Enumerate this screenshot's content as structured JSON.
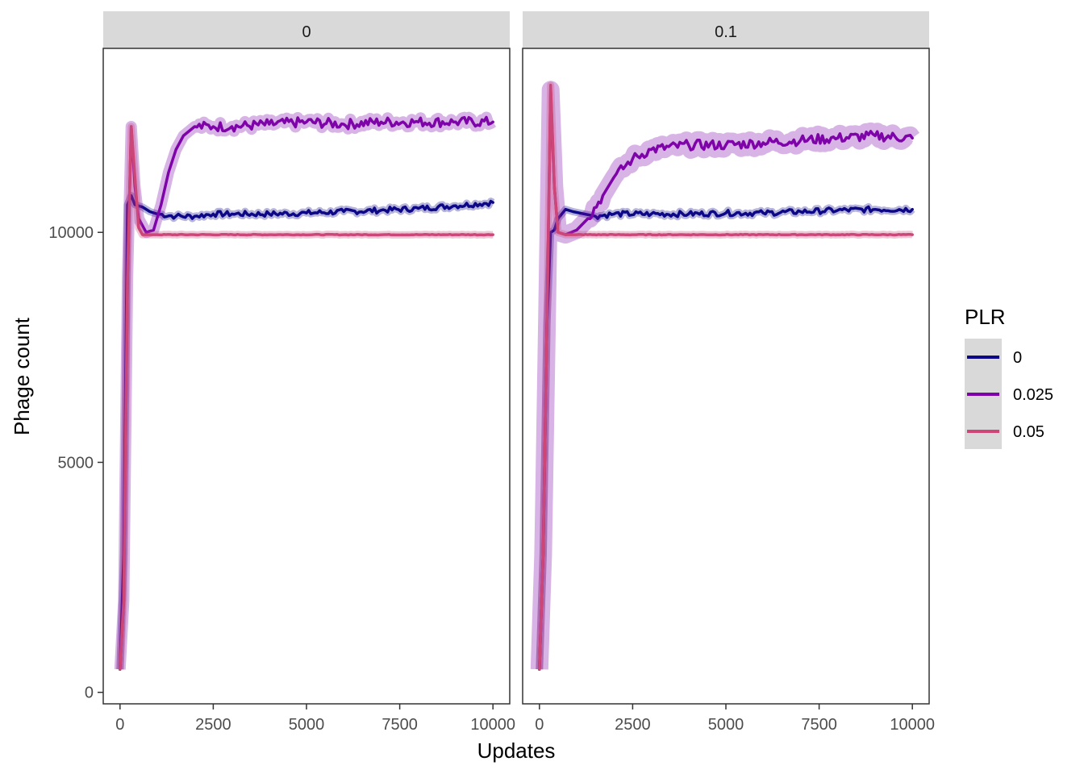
{
  "chart_data": {
    "type": "line",
    "xlabel": "Updates",
    "ylabel": "Phage count",
    "xlim": [
      -450,
      10450
    ],
    "ylim": [
      -250,
      14000
    ],
    "x_ticks": [
      0,
      2500,
      5000,
      7500,
      10000
    ],
    "y_ticks": [
      0,
      5000,
      10000
    ],
    "grid": false,
    "legend": {
      "title": "PLR",
      "position": "right",
      "entries": [
        {
          "label": "0",
          "color": "#0d0887"
        },
        {
          "label": "0.025",
          "color": "#7e03a8"
        },
        {
          "label": "0.05",
          "color": "#cc4778"
        }
      ]
    },
    "panels": [
      {
        "label": "0",
        "series": [
          {
            "name": "0",
            "color": "#0d0887",
            "points": [
              [
                0,
                500
              ],
              [
                100,
                3000
              ],
              [
                200,
                10600
              ],
              [
                300,
                10800
              ],
              [
                400,
                10600
              ],
              [
                600,
                10550
              ],
              [
                800,
                10450
              ],
              [
                1000,
                10400
              ],
              [
                1500,
                10350
              ],
              [
                2000,
                10350
              ],
              [
                2500,
                10400
              ],
              [
                3000,
                10400
              ],
              [
                4000,
                10400
              ],
              [
                5000,
                10420
              ],
              [
                6000,
                10450
              ],
              [
                7000,
                10480
              ],
              [
                8000,
                10520
              ],
              [
                9000,
                10580
              ],
              [
                10000,
                10650
              ]
            ]
          },
          {
            "name": "0.025",
            "color": "#7e03a8",
            "points": [
              [
                0,
                500
              ],
              [
                100,
                2000
              ],
              [
                200,
                9000
              ],
              [
                300,
                12300
              ],
              [
                400,
                11000
              ],
              [
                500,
                10300
              ],
              [
                700,
                10000
              ],
              [
                900,
                10050
              ],
              [
                1100,
                10600
              ],
              [
                1300,
                11300
              ],
              [
                1500,
                11800
              ],
              [
                1700,
                12100
              ],
              [
                2000,
                12300
              ],
              [
                2500,
                12300
              ],
              [
                3000,
                12300
              ],
              [
                4000,
                12350
              ],
              [
                5000,
                12400
              ],
              [
                6000,
                12350
              ],
              [
                7000,
                12400
              ],
              [
                8000,
                12400
              ],
              [
                9000,
                12400
              ],
              [
                10000,
                12400
              ]
            ]
          },
          {
            "name": "0.05",
            "color": "#cc4778",
            "points": [
              [
                0,
                500
              ],
              [
                100,
                2000
              ],
              [
                200,
                9000
              ],
              [
                300,
                12300
              ],
              [
                400,
                11200
              ],
              [
                500,
                10100
              ],
              [
                600,
                9950
              ],
              [
                800,
                9950
              ],
              [
                1000,
                9950
              ],
              [
                2000,
                9950
              ],
              [
                4000,
                9950
              ],
              [
                6000,
                9950
              ],
              [
                8000,
                9950
              ],
              [
                10000,
                9950
              ]
            ]
          }
        ]
      },
      {
        "label": "0.1",
        "series": [
          {
            "name": "0",
            "color": "#0d0887",
            "points": [
              [
                0,
                500
              ],
              [
                100,
                3000
              ],
              [
                200,
                8000
              ],
              [
                300,
                10000
              ],
              [
                400,
                10050
              ],
              [
                500,
                10300
              ],
              [
                700,
                10500
              ],
              [
                900,
                10450
              ],
              [
                1200,
                10400
              ],
              [
                1500,
                10350
              ],
              [
                2000,
                10400
              ],
              [
                3000,
                10400
              ],
              [
                4000,
                10400
              ],
              [
                5000,
                10420
              ],
              [
                6000,
                10420
              ],
              [
                7000,
                10450
              ],
              [
                8000,
                10480
              ],
              [
                9000,
                10500
              ],
              [
                10000,
                10500
              ]
            ]
          },
          {
            "name": "0.025",
            "color": "#7e03a8",
            "points": [
              [
                0,
                500
              ],
              [
                100,
                3000
              ],
              [
                200,
                8000
              ],
              [
                300,
                13100
              ],
              [
                400,
                11000
              ],
              [
                500,
                10000
              ],
              [
                700,
                9950
              ],
              [
                1000,
                10050
              ],
              [
                1300,
                10300
              ],
              [
                1700,
                10800
              ],
              [
                2000,
                11200
              ],
              [
                2500,
                11600
              ],
              [
                3000,
                11800
              ],
              [
                4000,
                11900
              ],
              [
                5000,
                11900
              ],
              [
                6000,
                11950
              ],
              [
                7000,
                12000
              ],
              [
                8000,
                12050
              ],
              [
                9000,
                12100
              ],
              [
                10000,
                12050
              ]
            ]
          },
          {
            "name": "0.05",
            "color": "#cc4778",
            "points": [
              [
                0,
                500
              ],
              [
                100,
                3000
              ],
              [
                200,
                8000
              ],
              [
                300,
                13200
              ],
              [
                400,
                11000
              ],
              [
                500,
                10000
              ],
              [
                700,
                9950
              ],
              [
                1000,
                9950
              ],
              [
                2000,
                9950
              ],
              [
                4000,
                9950
              ],
              [
                6000,
                9950
              ],
              [
                8000,
                9950
              ],
              [
                10000,
                9950
              ]
            ]
          }
        ]
      }
    ]
  }
}
